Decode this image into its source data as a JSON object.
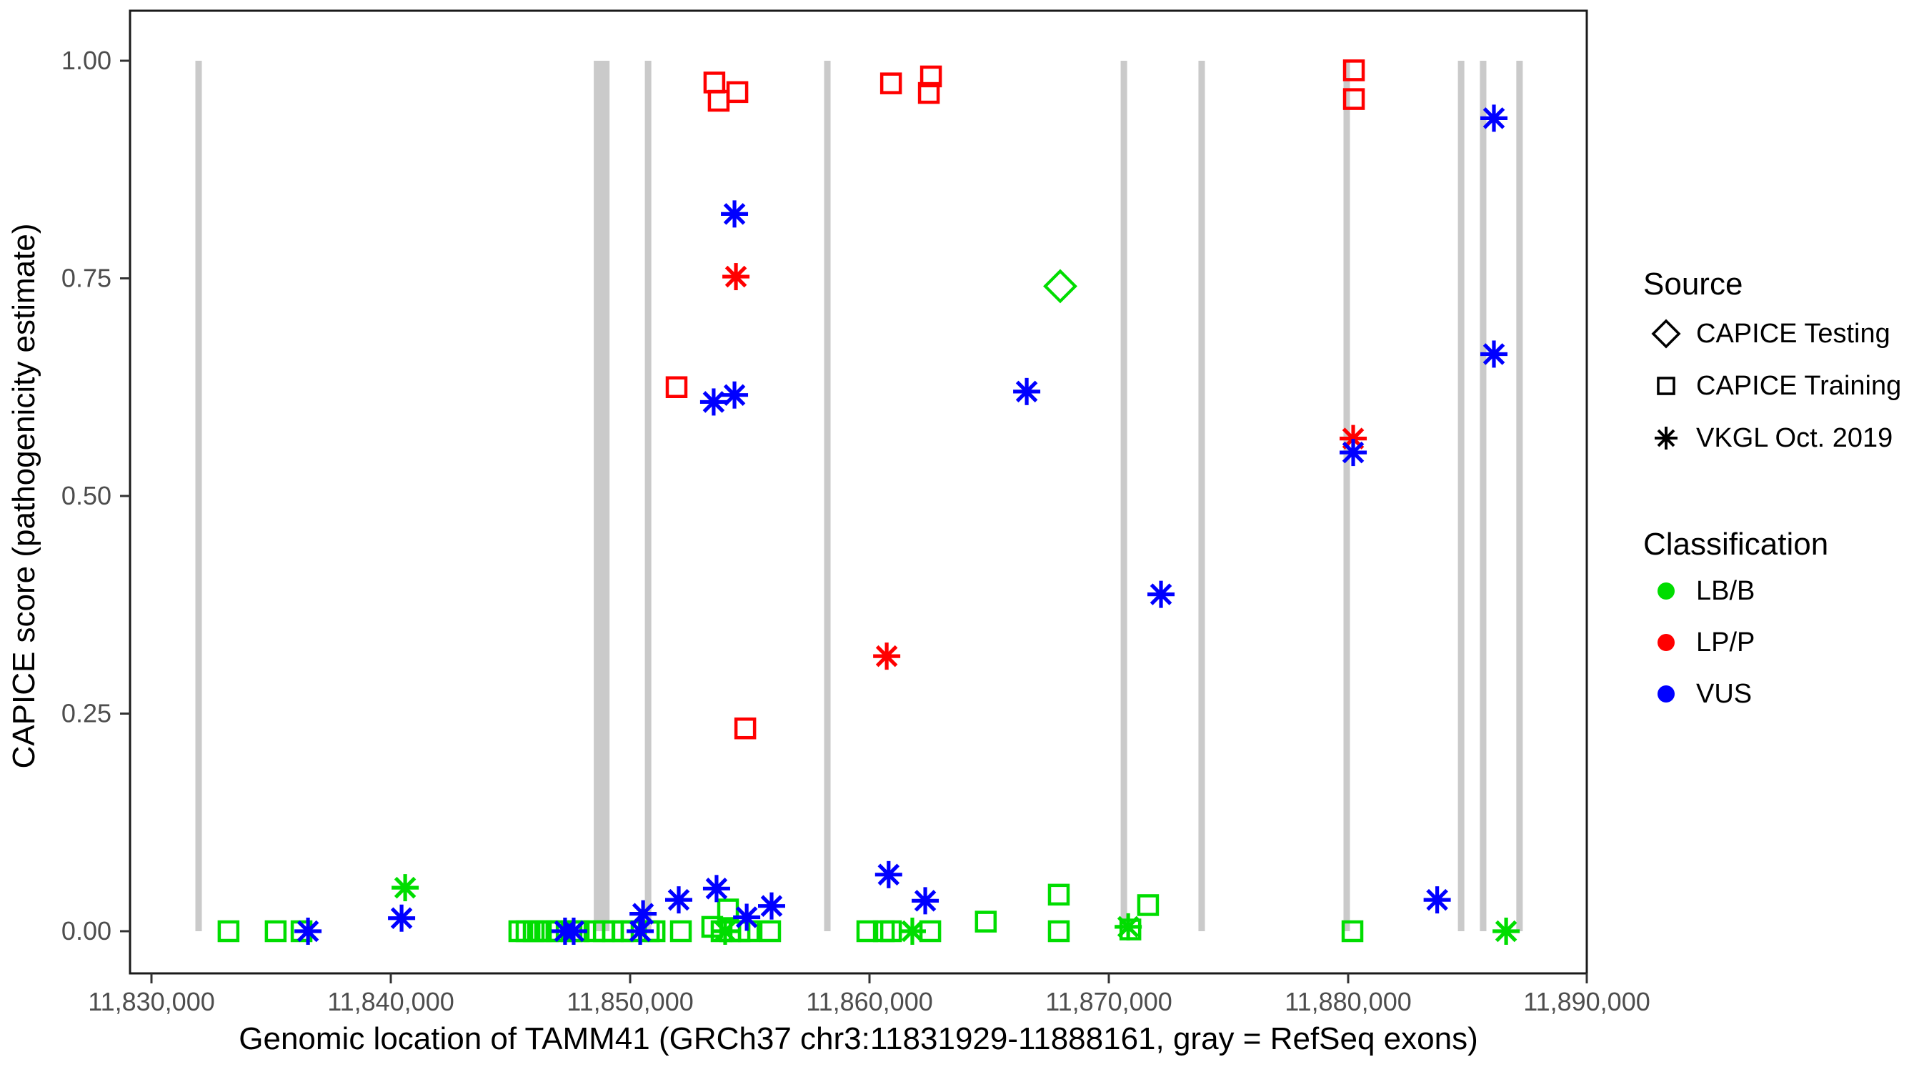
{
  "figure": {
    "background": "#ffffff",
    "panel_border_color": "#1a1a1a",
    "tick_label_color": "#4d4d4d",
    "axis_title_color": "#000000",
    "exon_color": "#cacaca"
  },
  "chart_data": {
    "type": "scatter",
    "title": "",
    "xlabel": "Genomic location of TAMM41 (GRCh37 chr3:11831929-11888161, gray = RefSeq exons)",
    "ylabel": "CAPICE score (pathogenicity estimate)",
    "xlim": [
      11829100,
      11890000
    ],
    "ylim": [
      -0.05,
      1.057
    ],
    "grid": "off",
    "legend_position": "right",
    "x_ticks": [
      {
        "value": 11830000,
        "label": "11,830,000"
      },
      {
        "value": 11840000,
        "label": "11,840,000"
      },
      {
        "value": 11850000,
        "label": "11,850,000"
      },
      {
        "value": 11860000,
        "label": "11,860,000"
      },
      {
        "value": 11870000,
        "label": "11,870,000"
      },
      {
        "value": 11880000,
        "label": "11,880,000"
      },
      {
        "value": 11890000,
        "label": "11,890,000"
      }
    ],
    "y_ticks": [
      {
        "value": 0.0,
        "label": "0.00"
      },
      {
        "value": 0.25,
        "label": "0.25"
      },
      {
        "value": 0.5,
        "label": "0.50"
      },
      {
        "value": 0.75,
        "label": "0.75"
      },
      {
        "value": 1.0,
        "label": "1.00"
      }
    ],
    "refseq_exons_gray": [
      {
        "center": 11831970,
        "width_bp": 270
      },
      {
        "center": 11848810,
        "width_bp": 660
      },
      {
        "center": 11850750,
        "width_bp": 270
      },
      {
        "center": 11858240,
        "width_bp": 270
      },
      {
        "center": 11870630,
        "width_bp": 270
      },
      {
        "center": 11873880,
        "width_bp": 270
      },
      {
        "center": 11879940,
        "width_bp": 270
      },
      {
        "center": 11884720,
        "width_bp": 270
      },
      {
        "center": 11885640,
        "width_bp": 270
      },
      {
        "center": 11887160,
        "width_bp": 270
      }
    ],
    "series": [
      {
        "name": "CAPICE Testing LB/B",
        "source": "CAPICE Testing",
        "classification": "LB/B",
        "shape": "diamond",
        "color": "#00dd00",
        "points": [
          [
            11867970,
            0.741
          ]
        ]
      },
      {
        "name": "CAPICE Training LP/P",
        "source": "CAPICE Training",
        "classification": "LP/P",
        "shape": "square",
        "color": "#ff0000",
        "points": [
          [
            11853520,
            0.975
          ],
          [
            11853700,
            0.954
          ],
          [
            11854480,
            0.964
          ],
          [
            11860900,
            0.974
          ],
          [
            11862480,
            0.963
          ],
          [
            11862570,
            0.982
          ],
          [
            11880240,
            0.989
          ],
          [
            11880240,
            0.956
          ],
          [
            11851940,
            0.625
          ],
          [
            11854810,
            0.233
          ]
        ]
      },
      {
        "name": "CAPICE Training LB/B",
        "source": "CAPICE Training",
        "classification": "LB/B",
        "shape": "square",
        "color": "#00dd00",
        "points": [
          [
            11833220,
            0
          ],
          [
            11835190,
            0
          ],
          [
            11836270,
            0
          ],
          [
            11845370,
            0
          ],
          [
            11845670,
            0
          ],
          [
            11845970,
            0
          ],
          [
            11846270,
            0
          ],
          [
            11846570,
            0
          ],
          [
            11846920,
            0
          ],
          [
            11847550,
            0
          ],
          [
            11847850,
            0
          ],
          [
            11848510,
            0
          ],
          [
            11848900,
            0
          ],
          [
            11849280,
            0
          ],
          [
            11849700,
            0
          ],
          [
            11850060,
            0
          ],
          [
            11850780,
            0
          ],
          [
            11851020,
            0
          ],
          [
            11852120,
            0
          ],
          [
            11853430,
            0.005
          ],
          [
            11853820,
            0
          ],
          [
            11854090,
            0.025
          ],
          [
            11854180,
            0
          ],
          [
            11854570,
            0
          ],
          [
            11854960,
            0
          ],
          [
            11855850,
            0
          ],
          [
            11859910,
            0
          ],
          [
            11860600,
            0
          ],
          [
            11860900,
            0
          ],
          [
            11862540,
            0
          ],
          [
            11864860,
            0.011
          ],
          [
            11867910,
            0.042
          ],
          [
            11867910,
            0
          ],
          [
            11870900,
            0.002
          ],
          [
            11871640,
            0.03
          ],
          [
            11880180,
            0
          ]
        ]
      },
      {
        "name": "VKGL Oct. 2019 LP/P",
        "source": "VKGL Oct. 2019",
        "classification": "LP/P",
        "shape": "asterisk",
        "color": "#ff0000",
        "points": [
          [
            11854420,
            0.752
          ],
          [
            11860720,
            0.316
          ],
          [
            11880210,
            0.566
          ]
        ]
      },
      {
        "name": "VKGL Oct. 2019 VUS",
        "source": "VKGL Oct. 2019",
        "classification": "VUS",
        "shape": "asterisk",
        "color": "#0000ff",
        "points": [
          [
            11836540,
            0
          ],
          [
            11840450,
            0.015
          ],
          [
            11847280,
            0
          ],
          [
            11847640,
            0
          ],
          [
            11850420,
            0
          ],
          [
            11850540,
            0.02
          ],
          [
            11852030,
            0.036
          ],
          [
            11853610,
            0.049
          ],
          [
            11854870,
            0.016
          ],
          [
            11855910,
            0.029
          ],
          [
            11853490,
            0.608
          ],
          [
            11854360,
            0.616
          ],
          [
            11854360,
            0.824
          ],
          [
            11860800,
            0.065
          ],
          [
            11862330,
            0.035
          ],
          [
            11866570,
            0.62
          ],
          [
            11872180,
            0.387
          ],
          [
            11880210,
            0.55
          ],
          [
            11883720,
            0.036
          ],
          [
            11886090,
            0.934
          ],
          [
            11886090,
            0.663
          ]
        ]
      },
      {
        "name": "VKGL Oct. 2019 LB/B",
        "source": "VKGL Oct. 2019",
        "classification": "LB/B",
        "shape": "asterisk",
        "color": "#00dd00",
        "points": [
          [
            11840600,
            0.05
          ],
          [
            11853970,
            0
          ],
          [
            11861790,
            0
          ],
          [
            11870810,
            0.005
          ],
          [
            11886600,
            0
          ]
        ]
      }
    ]
  },
  "legend": {
    "source": {
      "title": "Source",
      "items": [
        {
          "label": "CAPICE Testing",
          "shape": "diamond"
        },
        {
          "label": "CAPICE Training",
          "shape": "square"
        },
        {
          "label": "VKGL Oct. 2019",
          "shape": "asterisk"
        }
      ]
    },
    "classification": {
      "title": "Classification",
      "items": [
        {
          "label": "LB/B",
          "color": "#00dd00"
        },
        {
          "label": "LP/P",
          "color": "#ff0000"
        },
        {
          "label": "VUS",
          "color": "#0000ff"
        }
      ]
    }
  }
}
